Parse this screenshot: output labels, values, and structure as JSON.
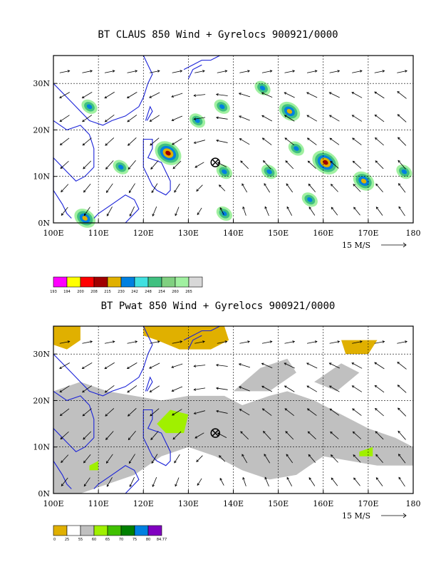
{
  "chart_data": [
    {
      "type": "heatmap",
      "title": "BT CLAUS 850 Wind + Gyrelocs 900921/0000",
      "x_ticks": [
        "100E",
        "110E",
        "120E",
        "130E",
        "140E",
        "150E",
        "160E",
        "170E",
        "180"
      ],
      "y_ticks": [
        "0N",
        "10N",
        "20N",
        "30N"
      ],
      "xlim": [
        100,
        180
      ],
      "ylim": [
        0,
        36
      ],
      "grid": true,
      "vector_scale_label": "15 M/S",
      "gyre_location": {
        "lon": 136,
        "lat": 13
      },
      "colorbar": {
        "labels": [
          "193",
          "194",
          "200",
          "208",
          "215",
          "230",
          "242",
          "248",
          "254",
          "260",
          "265"
        ],
        "colors": [
          "#ff00ff",
          "#ffff00",
          "#ff0000",
          "#a00000",
          "#e0b000",
          "#0080e0",
          "#40e0e0",
          "#40c080",
          "#80d080",
          "#a0f0a0",
          "#d8d8d8"
        ]
      },
      "cloud_cells": [
        {
          "lon": 125.5,
          "lat": 15,
          "level": 3
        },
        {
          "lon": 160.5,
          "lat": 13,
          "level": 3
        },
        {
          "lon": 169,
          "lat": 9,
          "level": 2
        },
        {
          "lon": 108,
          "lat": 25,
          "level": 1
        },
        {
          "lon": 152.5,
          "lat": 24,
          "level": 2
        },
        {
          "lon": 146.5,
          "lat": 29,
          "level": 1
        },
        {
          "lon": 137.5,
          "lat": 25,
          "level": 1
        },
        {
          "lon": 138,
          "lat": 11,
          "level": 1
        },
        {
          "lon": 148,
          "lat": 11,
          "level": 1
        },
        {
          "lon": 154,
          "lat": 16,
          "level": 1
        },
        {
          "lon": 157,
          "lat": 5,
          "level": 1
        },
        {
          "lon": 178,
          "lat": 11,
          "level": 1
        },
        {
          "lon": 107,
          "lat": 1,
          "level": 2
        },
        {
          "lon": 115,
          "lat": 12,
          "level": 1
        },
        {
          "lon": 138,
          "lat": 2,
          "level": 1
        },
        {
          "lon": 132,
          "lat": 22,
          "level": 1
        }
      ]
    },
    {
      "type": "heatmap",
      "title": "BT Pwat 850 Wind + Gyrelocs 900921/0000",
      "x_ticks": [
        "100E",
        "110E",
        "120E",
        "130E",
        "140E",
        "150E",
        "160E",
        "170E",
        "180"
      ],
      "y_ticks": [
        "0N",
        "10N",
        "20N",
        "30N"
      ],
      "xlim": [
        100,
        180
      ],
      "ylim": [
        0,
        36
      ],
      "grid": true,
      "vector_scale_label": "15 M/S",
      "gyre_location": {
        "lon": 136,
        "lat": 13
      },
      "colorbar": {
        "labels": [
          "0",
          "25",
          "55",
          "60",
          "65",
          "70",
          "75",
          "80",
          "84.77"
        ],
        "colors": [
          "#e0b000",
          "#ffffff",
          "#c0c0c0",
          "#a0f000",
          "#40c000",
          "#008000",
          "#0080e0",
          "#8000c0"
        ]
      }
    }
  ]
}
